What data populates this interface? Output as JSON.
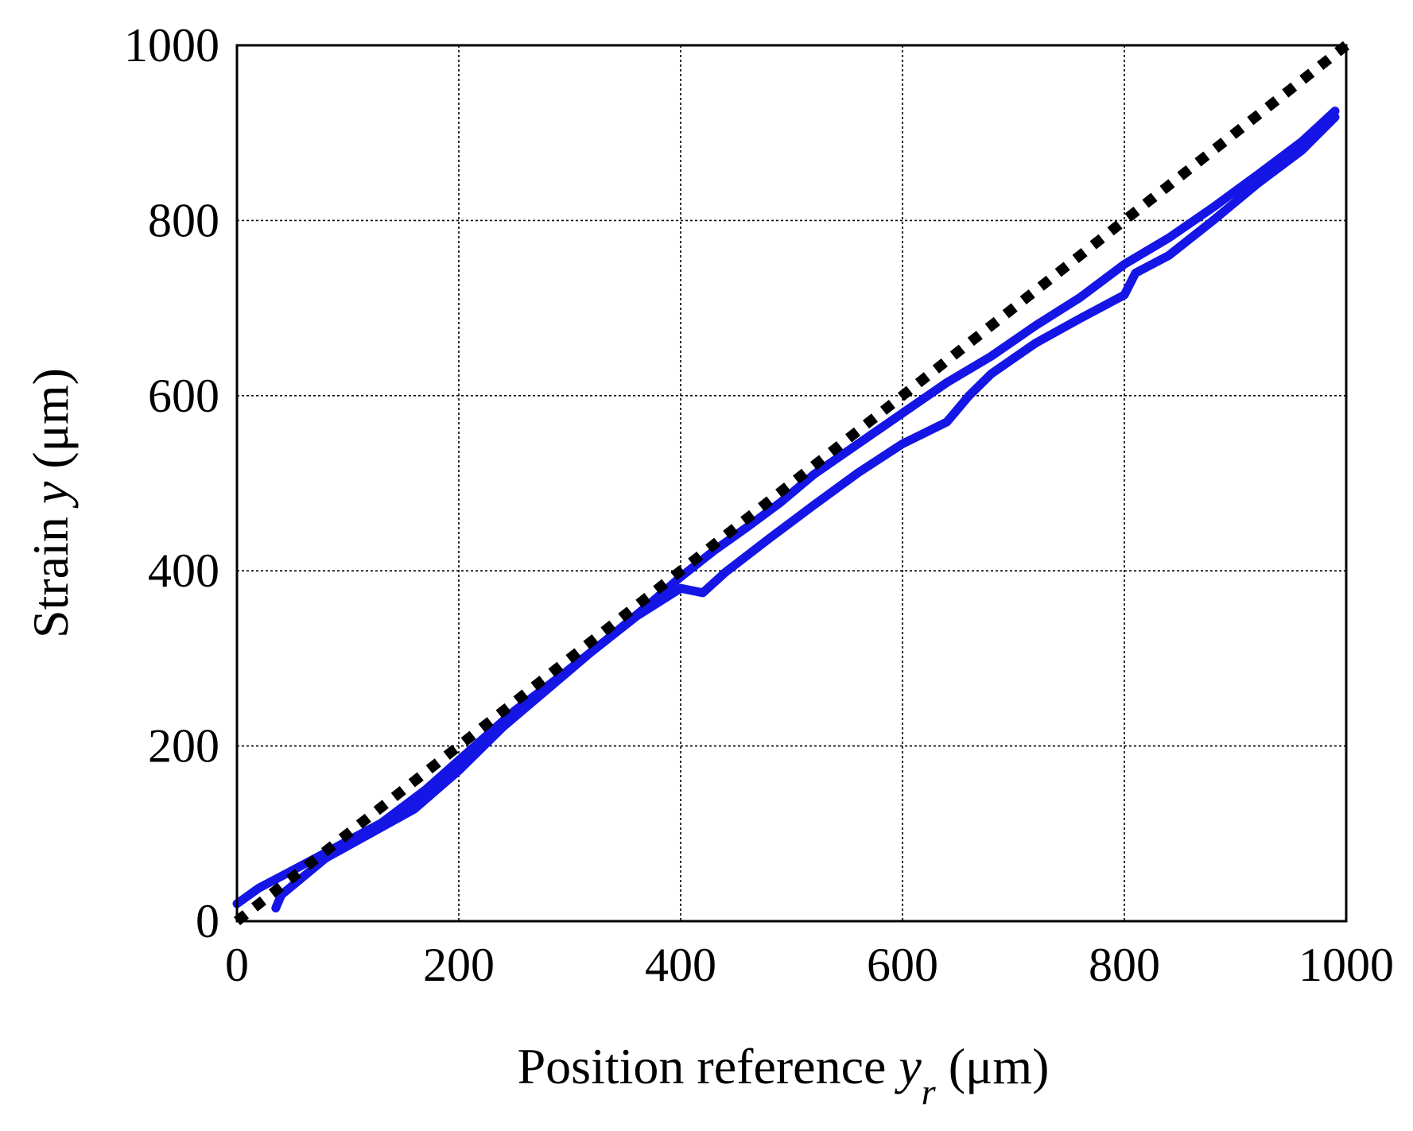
{
  "chart_data": {
    "type": "line",
    "xlabel": {
      "main": "Position reference ",
      "var": "y",
      "sub": "r",
      "unit": " (μm)"
    },
    "ylabel": {
      "main": "Strain ",
      "var": "y",
      "unit": " (μm)"
    },
    "xlim": [
      0,
      1000
    ],
    "ylim": [
      0,
      1000
    ],
    "xticks": [
      "0",
      "200",
      "400",
      "600",
      "800",
      "1000"
    ],
    "yticks": [
      "0",
      "200",
      "400",
      "600",
      "800",
      "1000"
    ],
    "grid": true,
    "series": [
      {
        "color": "#1515e6",
        "style": "solid",
        "x": [
          0,
          20,
          50,
          90,
          130,
          170,
          210,
          250,
          290,
          330,
          370,
          400,
          430,
          460,
          490,
          520,
          560,
          600,
          640,
          680,
          720,
          760,
          800,
          840,
          880,
          920,
          960,
          990
        ],
        "y": [
          20,
          38,
          58,
          85,
          112,
          150,
          195,
          240,
          278,
          318,
          360,
          393,
          423,
          450,
          478,
          510,
          545,
          580,
          615,
          645,
          680,
          712,
          750,
          780,
          815,
          852,
          890,
          925
        ]
      },
      {
        "color": "#1515e6",
        "style": "solid",
        "x": [
          990,
          960,
          920,
          880,
          840,
          810,
          800,
          760,
          720,
          680,
          660,
          640,
          600,
          560,
          520,
          480,
          440,
          420,
          400,
          360,
          320,
          280,
          240,
          200,
          160,
          120,
          80,
          40,
          35
        ],
        "y": [
          918,
          880,
          842,
          800,
          760,
          740,
          715,
          688,
          660,
          625,
          600,
          570,
          545,
          512,
          475,
          437,
          398,
          375,
          380,
          348,
          308,
          265,
          222,
          172,
          128,
          100,
          72,
          30,
          15
        ]
      },
      {
        "color": "#000000",
        "style": "dotted",
        "x": [
          0,
          1000
        ],
        "y": [
          0,
          1000
        ]
      }
    ]
  }
}
